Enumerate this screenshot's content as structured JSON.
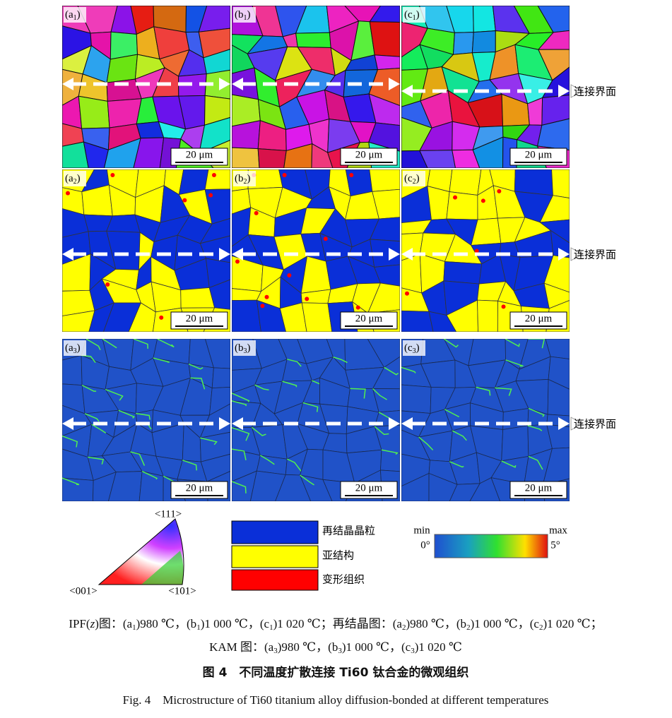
{
  "panels": [
    {
      "label": [
        "(a",
        "1",
        ")"
      ],
      "scale": "20 μm"
    },
    {
      "label": [
        "(b",
        "1",
        ")"
      ],
      "scale": "20 μm"
    },
    {
      "label": [
        "(c",
        "1",
        ")"
      ],
      "scale": "20 μm"
    },
    {
      "label": [
        "(a",
        "2",
        ")"
      ],
      "scale": "20 μm"
    },
    {
      "label": [
        "(b",
        "2",
        ")"
      ],
      "scale": "20 μm"
    },
    {
      "label": [
        "(c",
        "2",
        ")"
      ],
      "scale": "20 μm"
    },
    {
      "label": [
        "(a",
        "3",
        ")"
      ],
      "scale": "20 μm"
    },
    {
      "label": [
        "(b",
        "3",
        ")"
      ],
      "scale": "20 μm"
    },
    {
      "label": [
        "(c",
        "3",
        ")"
      ],
      "scale": "20 μm"
    }
  ],
  "interface_label": [
    "连接界面",
    "连接界面",
    "连接界面"
  ],
  "ipf_legend": {
    "top": "<111>",
    "left": "<001>",
    "right": "<101>"
  },
  "recrystallization_legend": [
    "再结晶晶粒",
    "亚结构",
    "变形组织"
  ],
  "kam_legend": {
    "min": "min",
    "max": "max",
    "min_value": "0°",
    "max_value": "5°"
  },
  "caption": {
    "line1": [
      {
        "text": "IPF("
      },
      {
        "italic": "z"
      },
      {
        "text": ")图：(a"
      },
      {
        "sub": "1"
      },
      {
        "text": ")980 ℃，(b"
      },
      {
        "sub": "1"
      },
      {
        "text": ")1 000 ℃，(c"
      },
      {
        "sub": "1"
      },
      {
        "text": ")1 020 ℃；再结晶图：(a"
      },
      {
        "sub": "2"
      },
      {
        "text": ")980 ℃，(b"
      },
      {
        "sub": "2"
      },
      {
        "text": ")1 000 ℃，(c"
      },
      {
        "sub": "2"
      },
      {
        "text": ")1 020 ℃；"
      }
    ],
    "line2": [
      {
        "text": "KAM 图：(a"
      },
      {
        "sub": "3"
      },
      {
        "text": ")980 ℃，(b"
      },
      {
        "sub": "3"
      },
      {
        "text": ")1 000 ℃，(c"
      },
      {
        "sub": "3"
      },
      {
        "text": ")1 020 ℃"
      }
    ],
    "title_cn": "图 4　不同温度扩散连接 Ti60 钛合金的微观组织",
    "title_en": "Fig. 4　Microstructure of Ti60 titanium alloy diffusion-bonded at different temperatures"
  }
}
